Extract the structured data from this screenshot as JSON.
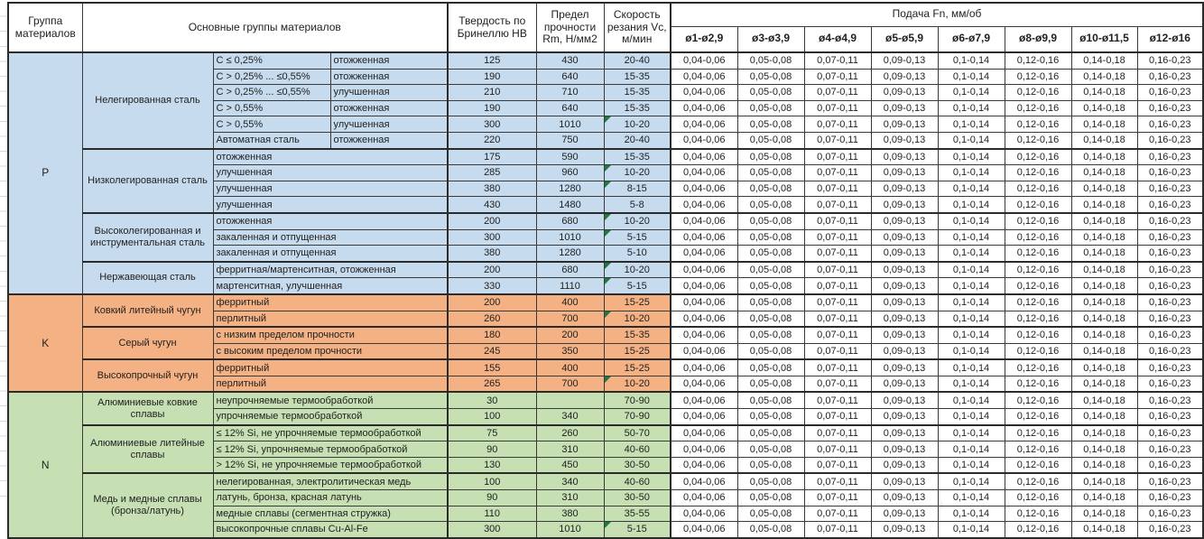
{
  "header": {
    "group_col": "Группа материалов",
    "families_col": "Основные группы материалов",
    "hb_col": "Твердость по Бринеллю HB",
    "rm_col": "Предел прочности Rm, Н/мм2",
    "vc_col": "Скорость резания Vc, м/мин",
    "feed_title": "Подача Fn, мм/об",
    "feed_cols": [
      "ø1-ø2,9",
      "ø3-ø3,9",
      "ø4-ø4,9",
      "ø5-ø5,9",
      "ø6-ø7,9",
      "ø8-ø9,9",
      "ø10-ø11,5",
      "ø12-ø16"
    ]
  },
  "feed_values": [
    "0,04-0,06",
    "0,05-0,08",
    "0,07-0,11",
    "0,09-0,13",
    "0,1-0,14",
    "0,12-0,16",
    "0,14-0,18",
    "0,16-0,23"
  ],
  "colors": {
    "p_blue": "#c7dbee",
    "k_orange": "#f4b183",
    "n_green": "#c6e0b4",
    "note_green": "#1e7a3c",
    "border": "#2b2b2b"
  },
  "groups": [
    {
      "code": "P",
      "color_key": "p_blue",
      "families": [
        {
          "name": "Нелегированная сталь",
          "rows": [
            {
              "sub": [
                "С ≤ 0,25%",
                "отожженная"
              ],
              "hb": "125",
              "rm": "430",
              "vc": "20-40",
              "note": false
            },
            {
              "sub": [
                "С > 0,25% ... ≤0,55%",
                "отожженная"
              ],
              "hb": "190",
              "rm": "640",
              "vc": "15-35",
              "note": false
            },
            {
              "sub": [
                "С > 0,25% ... ≤0,55%",
                "улучшенная"
              ],
              "hb": "210",
              "rm": "710",
              "vc": "15-35",
              "note": false
            },
            {
              "sub": [
                "С > 0,55%",
                "отожженная"
              ],
              "hb": "190",
              "rm": "640",
              "vc": "15-35",
              "note": false
            },
            {
              "sub": [
                "С > 0,55%",
                "улучшенная"
              ],
              "hb": "300",
              "rm": "1010",
              "vc": "10-20",
              "note": true
            },
            {
              "sub": [
                "Автоматная сталь",
                "отожженная"
              ],
              "hb": "220",
              "rm": "750",
              "vc": "20-40",
              "note": false
            }
          ]
        },
        {
          "name": "Низколегированная сталь",
          "rows": [
            {
              "sub": "отожженная",
              "hb": "175",
              "rm": "590",
              "vc": "15-35",
              "note": false
            },
            {
              "sub": "улучшенная",
              "hb": "285",
              "rm": "960",
              "vc": "10-20",
              "note": true
            },
            {
              "sub": "улучшенная",
              "hb": "380",
              "rm": "1280",
              "vc": "8-15",
              "note": true
            },
            {
              "sub": "улучшенная",
              "hb": "430",
              "rm": "1480",
              "vc": "5-8",
              "note": false
            }
          ]
        },
        {
          "name": "Высоколегированная и инструментальная сталь",
          "rows": [
            {
              "sub": "отожженная",
              "hb": "200",
              "rm": "680",
              "vc": "10-20",
              "note": true
            },
            {
              "sub": "закаленная и отпущенная",
              "hb": "300",
              "rm": "1010",
              "vc": "5-15",
              "note": true
            },
            {
              "sub": "закаленная и отпущенная",
              "hb": "380",
              "rm": "1280",
              "vc": "5-10",
              "note": false
            }
          ]
        },
        {
          "name": "Нержавеющая сталь",
          "rows": [
            {
              "sub": "ферритная/мартенситная, отожженная",
              "hb": "200",
              "rm": "680",
              "vc": "10-20",
              "note": true
            },
            {
              "sub": "мартенситная, улучшенная",
              "hb": "330",
              "rm": "1110",
              "vc": "5-15",
              "note": true
            }
          ]
        }
      ]
    },
    {
      "code": "K",
      "color_key": "k_orange",
      "families": [
        {
          "name": "Ковкий литейный чугун",
          "rows": [
            {
              "sub": "ферритный",
              "hb": "200",
              "rm": "400",
              "vc": "15-25",
              "note": false
            },
            {
              "sub": "перлитный",
              "hb": "260",
              "rm": "700",
              "vc": "10-20",
              "note": true
            }
          ]
        },
        {
          "name": "Серый чугун",
          "rows": [
            {
              "sub": "с низким пределом прочности",
              "hb": "180",
              "rm": "200",
              "vc": "15-35",
              "note": false
            },
            {
              "sub": "с высоким пределом прочности",
              "hb": "245",
              "rm": "350",
              "vc": "15-25",
              "note": false
            }
          ]
        },
        {
          "name": "Высокопрочный чугун",
          "rows": [
            {
              "sub": "ферритный",
              "hb": "155",
              "rm": "400",
              "vc": "15-25",
              "note": false
            },
            {
              "sub": "перлитный",
              "hb": "265",
              "rm": "700",
              "vc": "10-20",
              "note": true
            }
          ]
        }
      ]
    },
    {
      "code": "N",
      "color_key": "n_green",
      "families": [
        {
          "name": "Алюминиевые ковкие сплавы",
          "rows": [
            {
              "sub": "неупрочняемые термообработкой",
              "hb": "30",
              "rm": "",
              "vc": "70-90",
              "note": false
            },
            {
              "sub": "упрочняемые термообработкой",
              "hb": "100",
              "rm": "340",
              "vc": "70-90",
              "note": false
            }
          ]
        },
        {
          "name": "Алюминиевые литейные сплавы",
          "rows": [
            {
              "sub": "≤ 12% Si, не упрочняемые термообработкой",
              "hb": "75",
              "rm": "260",
              "vc": "50-70",
              "note": false
            },
            {
              "sub": "≤ 12% Si, упрочняемые термообработкой",
              "hb": "90",
              "rm": "310",
              "vc": "40-60",
              "note": false
            },
            {
              "sub": "> 12% Si, не упрочняемые термообработкой",
              "hb": "130",
              "rm": "450",
              "vc": "30-50",
              "note": false
            }
          ]
        },
        {
          "name": "Медь и медные сплавы (бронза/латунь)",
          "rows": [
            {
              "sub": "нелегированная, электролитическая медь",
              "hb": "100",
              "rm": "340",
              "vc": "40-60",
              "note": false
            },
            {
              "sub": "латунь, бронза, красная латунь",
              "hb": "90",
              "rm": "310",
              "vc": "30-50",
              "note": false
            },
            {
              "sub": "медные сплавы (сегментная стружка)",
              "hb": "110",
              "rm": "380",
              "vc": "35-55",
              "note": false
            },
            {
              "sub": "высокопрочные сплавы Cu-Al-Fe",
              "hb": "300",
              "rm": "1010",
              "vc": "5-15",
              "note": true
            }
          ]
        }
      ]
    }
  ]
}
